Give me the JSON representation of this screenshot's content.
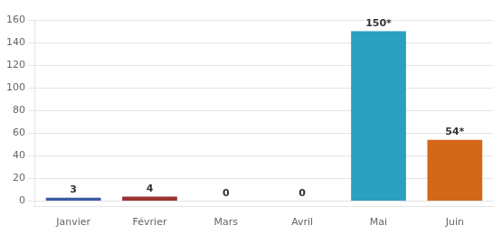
{
  "chart_data": {
    "type": "bar",
    "categories": [
      "Janvier",
      "Février",
      "Mars",
      "Avril",
      "Mai",
      "Juin"
    ],
    "values": [
      3,
      4,
      0,
      0,
      150,
      54
    ],
    "value_labels": [
      "3",
      "4",
      "0",
      "0",
      "150*",
      "54*"
    ],
    "colors": [
      "#3B5BA8",
      "#993333",
      "#6B7B2A",
      "#6B4A8B",
      "#29A0BE",
      "#D4681A"
    ],
    "ylim": [
      -5,
      160
    ],
    "yticks": [
      0,
      20,
      40,
      60,
      80,
      100,
      120,
      140,
      160
    ],
    "grid": true,
    "data_labels": true
  }
}
